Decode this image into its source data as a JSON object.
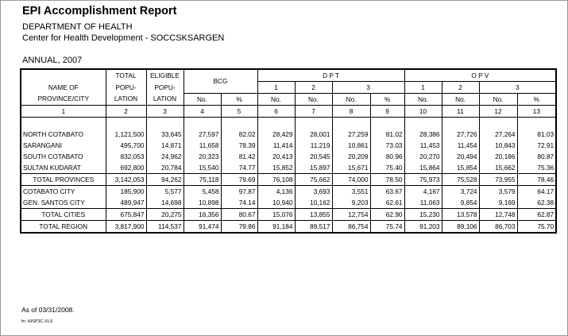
{
  "report": {
    "title": "EPI Accomplishment Report",
    "department": "DEPARTMENT OF HEALTH",
    "center": "Center for Health Development - SOCCSKSARGEN",
    "period": "ANNUAL, 2007",
    "as_of": "As of 03/31/2008.",
    "filename": "fn: HISP3C.XLS"
  },
  "headers": {
    "name_line1": "NAME OF",
    "name_line2": "PROVINCE/CITY",
    "total_line1": "TOTAL",
    "total_line2": "POPU-",
    "total_line3": "LATION",
    "eligible_line1": "ELIGIBLE",
    "eligible_line2": "POPU-",
    "eligible_line3": "LATION",
    "bcg": "BCG",
    "dpt": "D P T",
    "opv": "O P V",
    "dose1": "1",
    "dose2": "2",
    "dose3": "3",
    "no": "No.",
    "pct": "%",
    "col_numbers": [
      "1",
      "2",
      "3",
      "4",
      "5",
      "6",
      "7",
      "8",
      "9",
      "10",
      "11",
      "12",
      "13"
    ]
  },
  "provinces": [
    {
      "name": "NORTH COTABATO",
      "total_pop": "1,121,500",
      "eligible_pop": "33,645",
      "bcg_no": "27,597",
      "bcg_pct": "82.02",
      "dpt1": "28,429",
      "dpt2": "28,001",
      "dpt3_no": "27,259",
      "dpt3_pct": "81.02",
      "opv1": "28,386",
      "opv2": "27,726",
      "opv3_no": "27,264",
      "opv3_pct": "81.03"
    },
    {
      "name": "SARANGANI",
      "total_pop": "495,700",
      "eligible_pop": "14,871",
      "bcg_no": "11,658",
      "bcg_pct": "78.39",
      "dpt1": "11,414",
      "dpt2": "11,219",
      "dpt3_no": "10,861",
      "dpt3_pct": "73.03",
      "opv1": "11,453",
      "opv2": "11,454",
      "opv3_no": "10,843",
      "opv3_pct": "72.91"
    },
    {
      "name": "SOUTH COTABATO",
      "total_pop": "832,053",
      "eligible_pop": "24,962",
      "bcg_no": "20,323",
      "bcg_pct": "81.42",
      "dpt1": "20,413",
      "dpt2": "20,545",
      "dpt3_no": "20,209",
      "dpt3_pct": "80.96",
      "opv1": "20,270",
      "opv2": "20,494",
      "opv3_no": "20,186",
      "opv3_pct": "80.87"
    },
    {
      "name": "SULTAN KUDARAT",
      "total_pop": "692,800",
      "eligible_pop": "20,784",
      "bcg_no": "15,540",
      "bcg_pct": "74.77",
      "dpt1": "15,852",
      "dpt2": "15,897",
      "dpt3_no": "15,671",
      "dpt3_pct": "75.40",
      "opv1": "15,864",
      "opv2": "15,854",
      "opv3_no": "15,662",
      "opv3_pct": "75.36"
    }
  ],
  "total_provinces": {
    "name": "TOTAL PROVINCES",
    "total_pop": "3,142,053",
    "eligible_pop": "94,262",
    "bcg_no": "75,118",
    "bcg_pct": "79.69",
    "dpt1": "76,108",
    "dpt2": "75,662",
    "dpt3_no": "74,000",
    "dpt3_pct": "78.50",
    "opv1": "75,973",
    "opv2": "75,528",
    "opv3_no": "73,955",
    "opv3_pct": "78.46"
  },
  "cities": [
    {
      "name": "COTABATO CITY",
      "total_pop": "185,900",
      "eligible_pop": "5,577",
      "bcg_no": "5,458",
      "bcg_pct": "97.87",
      "dpt1": "4,136",
      "dpt2": "3,693",
      "dpt3_no": "3,551",
      "dpt3_pct": "63.67",
      "opv1": "4,167",
      "opv2": "3,724",
      "opv3_no": "3,579",
      "opv3_pct": "64.17"
    },
    {
      "name": "GEN. SANTOS CITY",
      "total_pop": "489,947",
      "eligible_pop": "14,698",
      "bcg_no": "10,898",
      "bcg_pct": "74.14",
      "dpt1": "10,940",
      "dpt2": "10,162",
      "dpt3_no": "9,203",
      "dpt3_pct": "62.61",
      "opv1": "11,063",
      "opv2": "9,854",
      "opv3_no": "9,169",
      "opv3_pct": "62.38"
    }
  ],
  "total_cities": {
    "name": "TOTAL CITIES",
    "total_pop": "675,847",
    "eligible_pop": "20,275",
    "bcg_no": "16,356",
    "bcg_pct": "80.67",
    "dpt1": "15,076",
    "dpt2": "13,855",
    "dpt3_no": "12,754",
    "dpt3_pct": "62.90",
    "opv1": "15,230",
    "opv2": "13,578",
    "opv3_no": "12,748",
    "opv3_pct": "62.87"
  },
  "total_region": {
    "name": "TOTAL REGION",
    "total_pop": "3,817,900",
    "eligible_pop": "114,537",
    "bcg_no": "91,474",
    "bcg_pct": "79.86",
    "dpt1": "91,184",
    "dpt2": "89,517",
    "dpt3_no": "86,754",
    "dpt3_pct": "75.74",
    "opv1": "91,203",
    "opv2": "89,106",
    "opv3_no": "86,703",
    "opv3_pct": "75.70"
  }
}
